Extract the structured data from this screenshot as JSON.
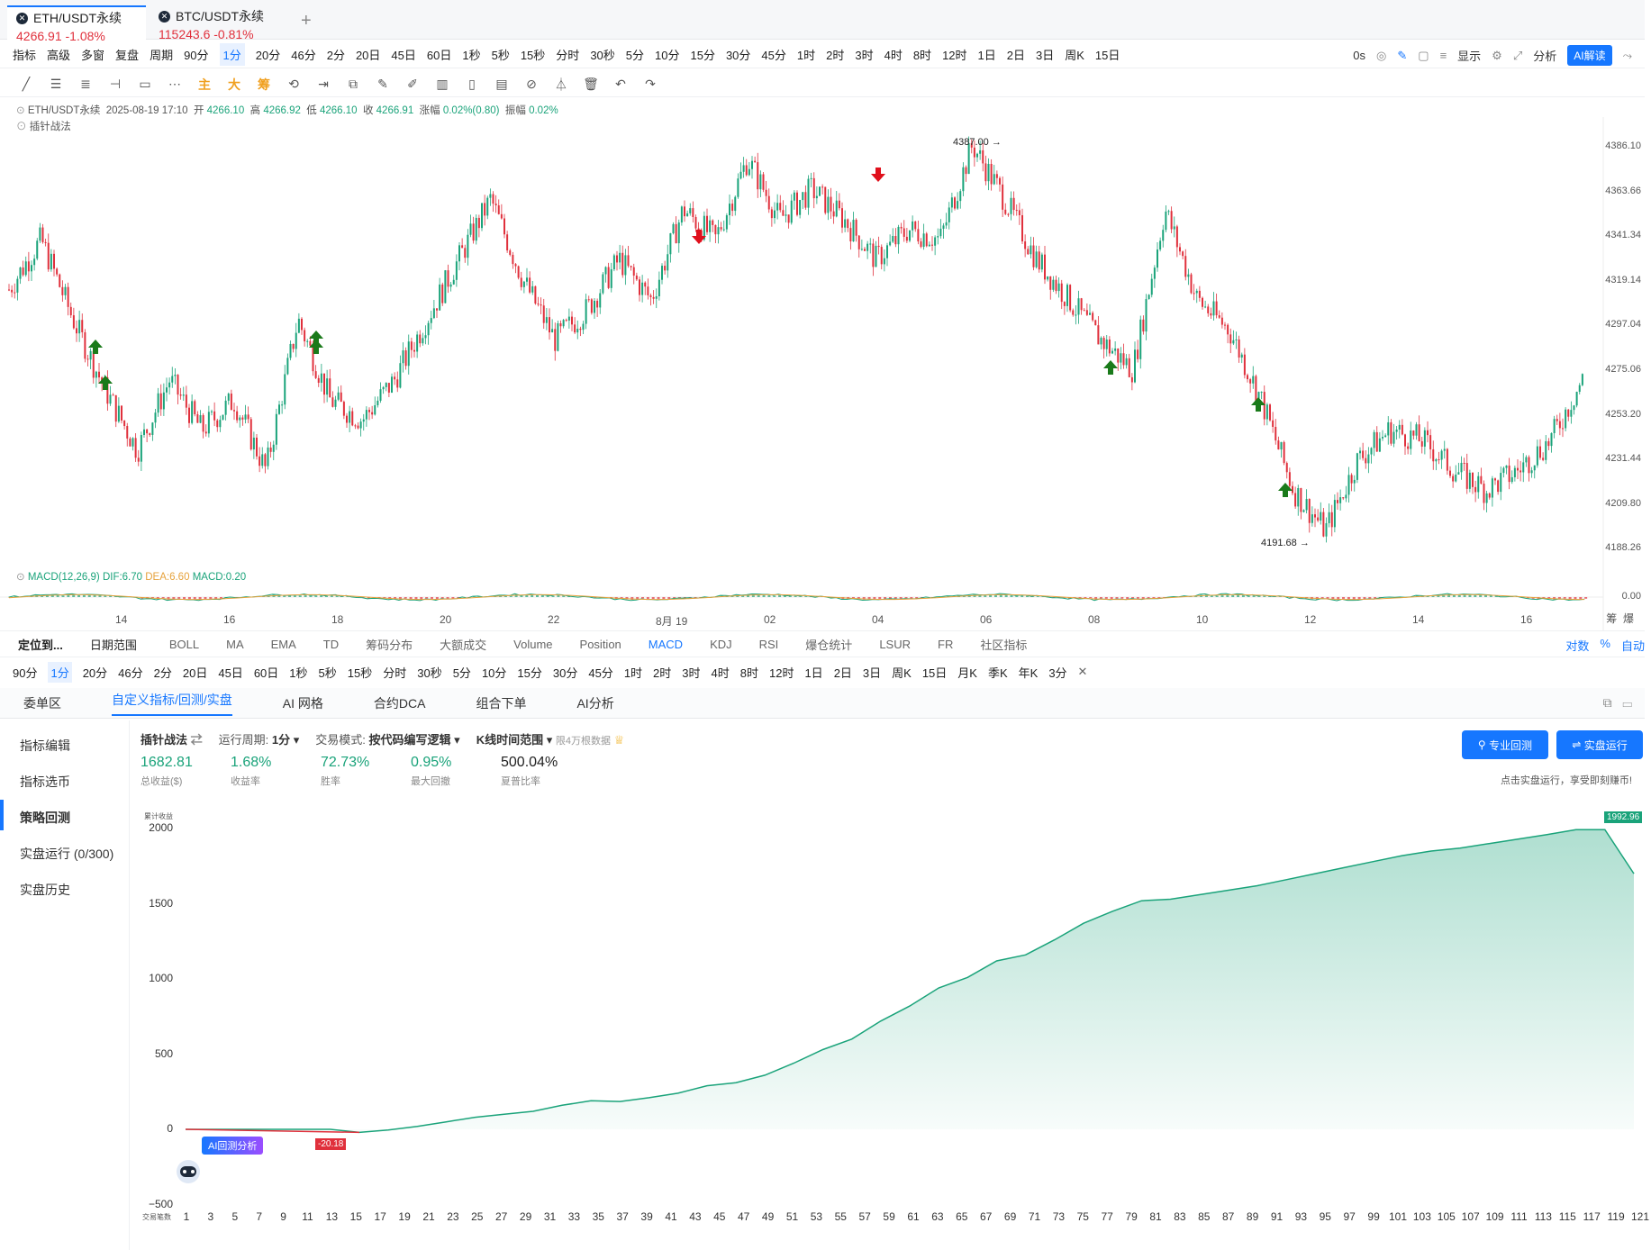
{
  "tabs": [
    {
      "name": "ETH/USDT永续",
      "price": "4266.91",
      "change": "-1.08%",
      "active": true
    },
    {
      "name": "BTC/USDT永续",
      "price": "115243.6",
      "change": "-0.81%",
      "active": false
    }
  ],
  "add_tab": "+",
  "toolbar1": {
    "items": [
      "指标",
      "高级",
      "多窗",
      "复盘",
      "周期",
      "90分",
      "1分",
      "20分",
      "46分",
      "2分",
      "20日",
      "45日",
      "60日",
      "1秒",
      "5秒",
      "15秒",
      "分时",
      "30秒",
      "5分",
      "10分",
      "15分",
      "30分",
      "45分",
      "1时",
      "2时",
      "3时",
      "4时",
      "8时",
      "12时",
      "1日",
      "2日",
      "3日",
      "周K",
      "15日"
    ],
    "selected": "1分",
    "right": {
      "timer": "0s",
      "display": "显示",
      "analysis": "分析",
      "ai": "AI解读"
    }
  },
  "toolbar2_icons": [
    "line-tool-icon",
    "hline-tool-icon",
    "channel-tool-icon",
    "ray-tool-icon",
    "rect-tool-icon",
    "more-tools-icon",
    "main-icon",
    "big-icon",
    "chip-icon",
    "replay-icon",
    "range-icon",
    "copy-icon",
    "ruler-icon",
    "pen-icon",
    "bars-icon",
    "lock-icon",
    "note-icon",
    "magnet-icon",
    "filter-icon",
    "trash-icon",
    "undo-icon",
    "redo-icon"
  ],
  "toolbar2_text": [
    "主",
    "大",
    "筹"
  ],
  "ohlc": {
    "symbol": "ETH/USDT永续",
    "time": "2025-08-19 17:10",
    "open_label": "开",
    "open": "4266.10",
    "high_label": "高",
    "high": "4266.92",
    "low_label": "低",
    "low": "4266.10",
    "close_label": "收",
    "close": "4266.91",
    "chg_label": "涨幅",
    "chg": "0.02%(0.80)",
    "amp_label": "振幅",
    "amp": "0.02%"
  },
  "strategy_label": "插针战法",
  "price_axis": [
    "4386.10",
    "4363.66",
    "4341.34",
    "4319.14",
    "4297.04",
    "4275.06",
    "4253.20",
    "4231.44",
    "4209.80",
    "4188.26"
  ],
  "high_marker": "4387.00",
  "low_marker": "4191.68",
  "macd_label": "MACD(12,26,9)",
  "macd_dif": "DIF:6.70",
  "macd_dea": "DEA:6.60",
  "macd_val": "MACD:0.20",
  "macd_zero": "0.00",
  "right_axis_labels": [
    "筹",
    "爆"
  ],
  "date_axis": [
    "14",
    "16",
    "18",
    "20",
    "22",
    "8月 19",
    "02",
    "04",
    "06",
    "08",
    "10",
    "12",
    "14",
    "16"
  ],
  "indicator_bar": {
    "locate": "定位到...",
    "date_range": "日期范围",
    "items": [
      "BOLL",
      "MA",
      "EMA",
      "TD",
      "筹码分布",
      "大额成交",
      "Volume",
      "Position",
      "MACD",
      "KDJ",
      "RSI",
      "爆仓统计",
      "LSUR",
      "FR",
      "社区指标"
    ],
    "selected": "MACD",
    "right": [
      "对数",
      "%",
      "自动"
    ]
  },
  "period_bar": {
    "items": [
      "90分",
      "1分",
      "20分",
      "46分",
      "2分",
      "20日",
      "45日",
      "60日",
      "1秒",
      "5秒",
      "15秒",
      "分时",
      "30秒",
      "5分",
      "10分",
      "15分",
      "30分",
      "45分",
      "1时",
      "2时",
      "3时",
      "4时",
      "8时",
      "12时",
      "1日",
      "2日",
      "3日",
      "周K",
      "15日",
      "月K",
      "季K",
      "年K",
      "3分"
    ],
    "selected": "1分",
    "close": "✕"
  },
  "panel_tabs": {
    "items": [
      "委单区",
      "自定义指标/回测/实盘",
      "AI 网格",
      "合约DCA",
      "组合下单",
      "AI分析"
    ],
    "selected": "自定义指标/回测/实盘"
  },
  "sidebar": {
    "items": [
      "指标编辑",
      "指标选币",
      "策略回测",
      "实盘运行 (0/300)",
      "实盘历史"
    ],
    "selected": "策略回测"
  },
  "strategy_bar": {
    "name": "插针战法",
    "period_label": "运行周期:",
    "period": "1分",
    "mode_label": "交易模式:",
    "mode": "按代码编写逻辑",
    "range_label": "K线时间范围",
    "range_note": "限4万根数据"
  },
  "stats": [
    {
      "value": "1682.81",
      "label": "总收益($)"
    },
    {
      "value": "1.68%",
      "label": "收益率"
    },
    {
      "value": "72.73%",
      "label": "胜率"
    },
    {
      "value": "0.95%",
      "label": "最大回撤"
    },
    {
      "value": "500.04%",
      "label": "夏普比率"
    }
  ],
  "buttons": {
    "backtest": "专业回测",
    "live": "实盘运行",
    "hint": "点击实盘运行，享受即刻赚币!"
  },
  "equity_axis": {
    "title": "累计收益",
    "x_title": "交易笔数",
    "final_label": "1992.96",
    "min_label": "-20.18",
    "ai_badge": "AI回测分析"
  },
  "colors": {
    "accent": "#1677ff",
    "up": "#1aa37a",
    "down": "#e0303c",
    "dif": "#e6a23c",
    "equity": "#1aa37a"
  },
  "chart_data": [
    {
      "type": "line",
      "y": [
        0,
        0,
        0,
        0,
        0,
        0,
        -20.18,
        -5,
        20,
        50,
        80,
        100,
        120,
        160,
        190,
        185,
        210,
        240,
        290,
        310,
        360,
        440,
        530,
        600,
        720,
        820,
        940,
        1010,
        1120,
        1160,
        1260,
        1370,
        1450,
        1520,
        1530,
        1560,
        1590,
        1620,
        1660,
        1700,
        1740,
        1780,
        1820,
        1850,
        1870,
        1900,
        1930,
        1960,
        1992.96,
        1992.96,
        1700
      ],
      "x_ticks": [
        "1",
        "3",
        "5",
        "7",
        "9",
        "11",
        "13",
        "15",
        "17",
        "19",
        "21",
        "23",
        "25",
        "27",
        "29",
        "31",
        "33",
        "35",
        "37",
        "39",
        "41",
        "43",
        "45",
        "47",
        "49",
        "51",
        "53",
        "55",
        "57",
        "59",
        "61",
        "63",
        "65",
        "67",
        "69",
        "71",
        "73",
        "75",
        "77",
        "79",
        "81",
        "83",
        "85",
        "87",
        "89",
        "91",
        "93",
        "95",
        "97",
        "99",
        "101",
        "103",
        "105",
        "107",
        "109",
        "111",
        "113",
        "115",
        "117",
        "119",
        "121"
      ],
      "y_ticks": [
        "2000",
        "1500",
        "1000",
        "500",
        "0",
        "−500"
      ],
      "ylim": [
        -500,
        2100
      ],
      "xlabel": "交易笔数",
      "ylabel": "累计收益"
    },
    {
      "type": "line",
      "y": [
        4315,
        4340,
        4300,
        4265,
        4235,
        4270,
        4245,
        4260,
        4225,
        4300,
        4260,
        4250,
        4270,
        4300,
        4330,
        4360,
        4320,
        4290,
        4305,
        4330,
        4310,
        4355,
        4340,
        4380,
        4350,
        4365,
        4350,
        4330,
        4345,
        4340,
        4387,
        4360,
        4330,
        4310,
        4290,
        4275,
        4355,
        4310,
        4295,
        4260,
        4215,
        4195,
        4230,
        4245,
        4240,
        4225,
        4215,
        4225,
        4240,
        4270
      ],
      "ylim": [
        4188.26,
        4386.1
      ],
      "x_ticks": [
        "14",
        "16",
        "18",
        "20",
        "22",
        "8月 19",
        "02",
        "04",
        "06",
        "08",
        "10",
        "12",
        "14",
        "16"
      ]
    }
  ]
}
